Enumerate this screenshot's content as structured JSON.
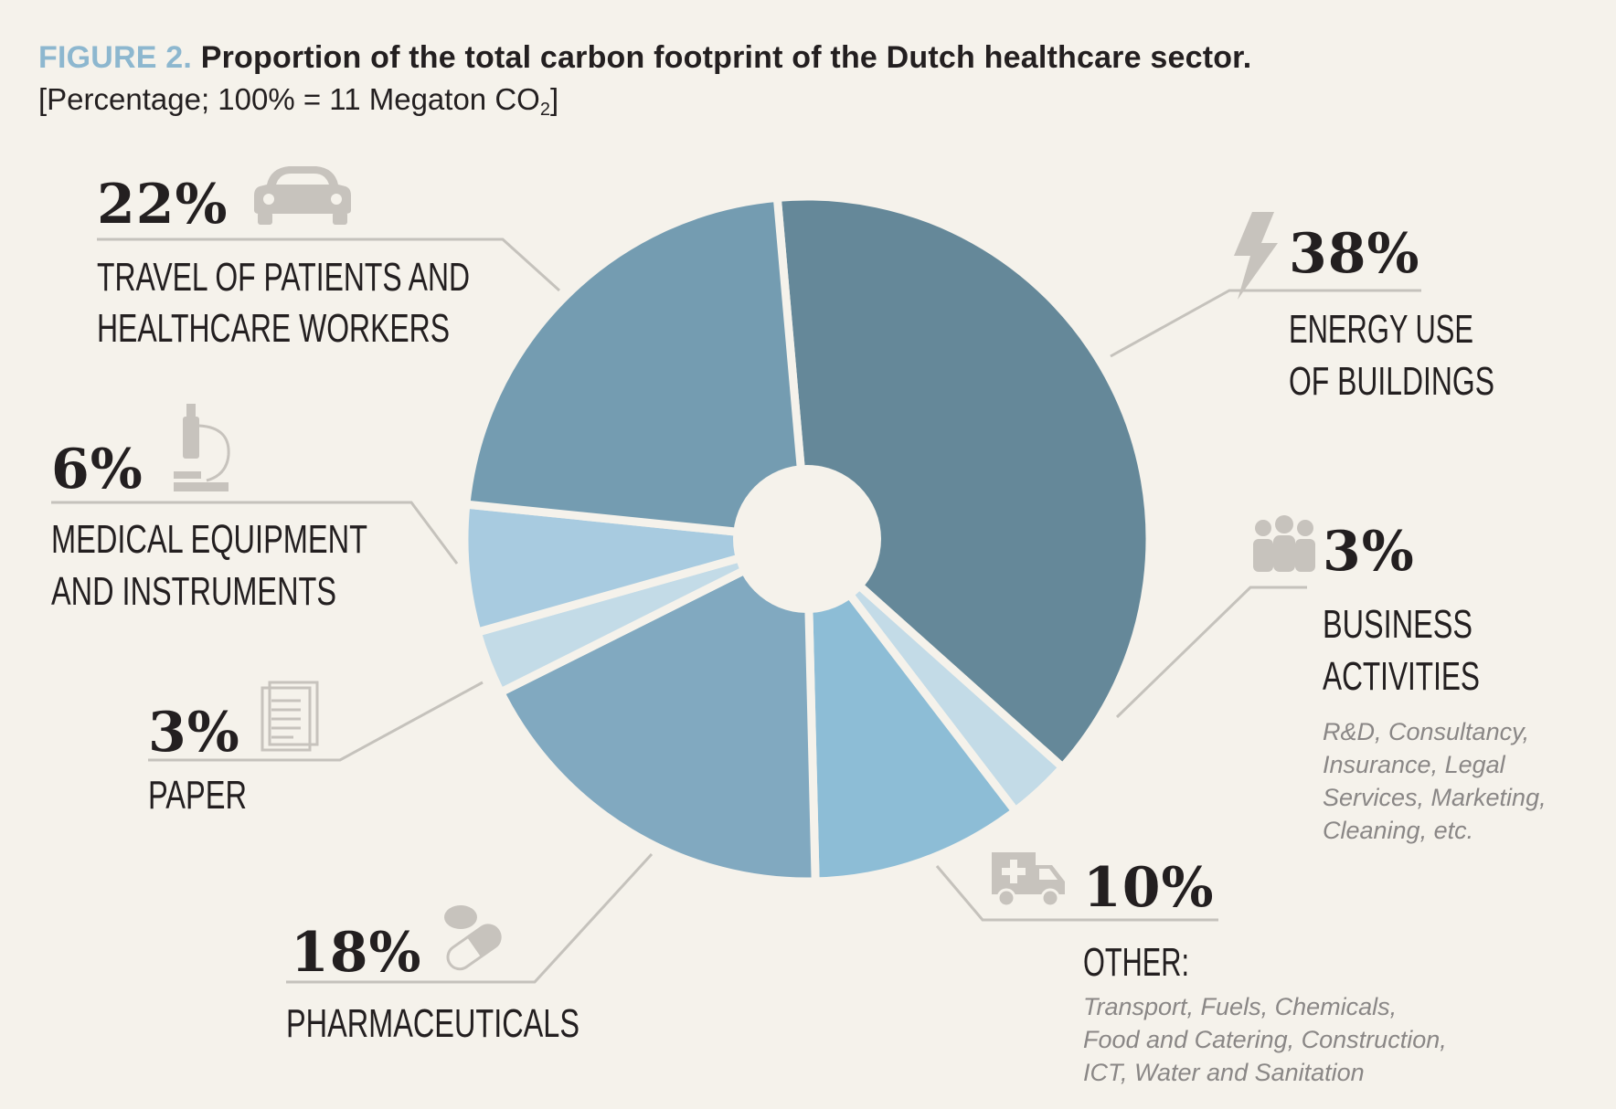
{
  "figure": {
    "label": "FIGURE 2.",
    "title": "Proportion of the total carbon footprint of the Dutch healthcare sector.",
    "subtitle_prefix": "[Percentage; 100% = 11 Megaton CO",
    "subtitle_subscript": "2",
    "subtitle_suffix": "]"
  },
  "colors": {
    "background": "#f5f2eb",
    "figure_label": "#8db7cf",
    "icons": "#c7c3bd",
    "leader_lines": "#c5c2bc",
    "description_text": "#8a8786"
  },
  "chart_data": {
    "type": "pie",
    "donut": true,
    "unit": "%",
    "slices": [
      {
        "key": "energy",
        "value": 38,
        "percent_label": "38%",
        "category_lines": [
          "ENERGY USE",
          "OF BUILDINGS"
        ],
        "description_lines": [],
        "color": "#658899",
        "icon": "lightning-bolt-icon"
      },
      {
        "key": "business",
        "value": 3,
        "percent_label": "3%",
        "category_lines": [
          "BUSINESS",
          "ACTIVITIES"
        ],
        "description_lines": [
          "R&D, Consultancy,",
          "Insurance, Legal",
          "Services, Marketing,",
          "Cleaning, etc."
        ],
        "color": "#c3dbe7",
        "icon": "people-group-icon"
      },
      {
        "key": "other",
        "value": 10,
        "percent_label": "10%",
        "category_lines": [
          "OTHER:"
        ],
        "description_lines": [
          "Transport, Fuels, Chemicals,",
          "Food and Catering, Construction,",
          "ICT, Water and Sanitation"
        ],
        "color": "#8dbdd6",
        "icon": "ambulance-icon"
      },
      {
        "key": "pharma",
        "value": 18,
        "percent_label": "18%",
        "category_lines": [
          "PHARMACEUTICALS"
        ],
        "description_lines": [],
        "color": "#81a9c0",
        "icon": "pills-icon"
      },
      {
        "key": "paper",
        "value": 3,
        "percent_label": "3%",
        "category_lines": [
          "PAPER"
        ],
        "description_lines": [],
        "color": "#c3dbe7",
        "icon": "paper-document-icon"
      },
      {
        "key": "medical",
        "value": 6,
        "percent_label": "6%",
        "category_lines": [
          "MEDICAL EQUIPMENT",
          "AND INSTRUMENTS"
        ],
        "description_lines": [],
        "color": "#a8cbe0",
        "icon": "microscope-icon"
      },
      {
        "key": "travel",
        "value": 22,
        "percent_label": "22%",
        "category_lines": [
          "TRAVEL OF PATIENTS AND",
          "HEALTHCARE WORKERS"
        ],
        "description_lines": [],
        "color": "#749cb1",
        "icon": "car-icon"
      }
    ]
  }
}
